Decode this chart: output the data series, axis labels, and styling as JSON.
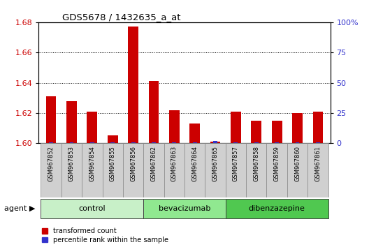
{
  "title": "GDS5678 / 1432635_a_at",
  "samples": [
    "GSM967852",
    "GSM967853",
    "GSM967854",
    "GSM967855",
    "GSM967856",
    "GSM967862",
    "GSM967863",
    "GSM967864",
    "GSM967865",
    "GSM967857",
    "GSM967858",
    "GSM967859",
    "GSM967860",
    "GSM967861"
  ],
  "transformed_count": [
    1.631,
    1.628,
    1.621,
    1.605,
    1.677,
    1.641,
    1.622,
    1.613,
    1.601,
    1.621,
    1.615,
    1.615,
    1.62,
    1.621
  ],
  "percentile_rank": [
    1,
    1,
    1,
    1,
    1,
    1,
    1,
    1,
    2,
    1,
    1,
    1,
    1,
    1
  ],
  "groups": [
    {
      "label": "control",
      "start": 0,
      "end": 5,
      "color": "#c8f0c8"
    },
    {
      "label": "bevacizumab",
      "start": 5,
      "end": 9,
      "color": "#90e890"
    },
    {
      "label": "dibenzazepine",
      "start": 9,
      "end": 14,
      "color": "#50c850"
    }
  ],
  "ylim_left": [
    1.6,
    1.68
  ],
  "ylim_right": [
    0,
    100
  ],
  "yticks_left": [
    1.6,
    1.62,
    1.64,
    1.66,
    1.68
  ],
  "yticks_right": [
    0,
    25,
    50,
    75,
    100
  ],
  "ytick_labels_right": [
    "0",
    "25",
    "50",
    "75",
    "100%"
  ],
  "bar_color_red": "#cc0000",
  "bar_color_blue": "#3333cc",
  "background_color": "#ffffff",
  "bar_width": 0.5,
  "blue_bar_width": 0.2,
  "legend_items": [
    {
      "label": "transformed count",
      "color": "#cc0000"
    },
    {
      "label": "percentile rank within the sample",
      "color": "#3333cc"
    }
  ]
}
